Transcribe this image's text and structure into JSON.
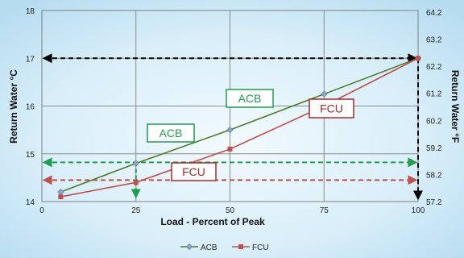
{
  "chart_data": {
    "type": "line",
    "title": "",
    "xlabel": "Load - Percent of Peak",
    "ylabel": "Return Water °C",
    "y2label": "Return Water °F",
    "xlim": [
      0,
      100
    ],
    "ylim": [
      14,
      18
    ],
    "xticks": [
      "0",
      "25",
      "50",
      "75",
      "100"
    ],
    "yticks": [
      "14",
      "15",
      "16",
      "17",
      "18"
    ],
    "y2ticks": [
      "57.2",
      "58.2",
      "59.2",
      "60.2",
      "61.2",
      "62.2",
      "63.2",
      "64.2"
    ],
    "grid": true,
    "legend": "bottom",
    "series": [
      {
        "name": "ACB",
        "color": "#4a7e28",
        "marker": "diamond",
        "x": [
          5,
          25,
          50,
          75,
          100
        ],
        "y": [
          14.2,
          14.8,
          15.5,
          16.25,
          17.0
        ]
      },
      {
        "name": "FCU",
        "color": "#c0504d",
        "marker": "square",
        "x": [
          5,
          25,
          50,
          75,
          100
        ],
        "y": [
          14.1,
          14.4,
          15.1,
          16.0,
          17.0
        ]
      }
    ],
    "annotations": [
      {
        "label": "ACB",
        "color": "#1f9e4e"
      },
      {
        "label": "ACB",
        "color": "#1f9e4e"
      },
      {
        "label": "FCU",
        "color": "#a52a2a"
      },
      {
        "label": "FCU",
        "color": "#a52a2a"
      }
    ],
    "reference_lines": [
      {
        "y": 17.0,
        "color": "#000000"
      },
      {
        "y": 14.82,
        "color": "#1f9e4e"
      },
      {
        "y": 14.45,
        "color": "#c0504d"
      }
    ]
  }
}
